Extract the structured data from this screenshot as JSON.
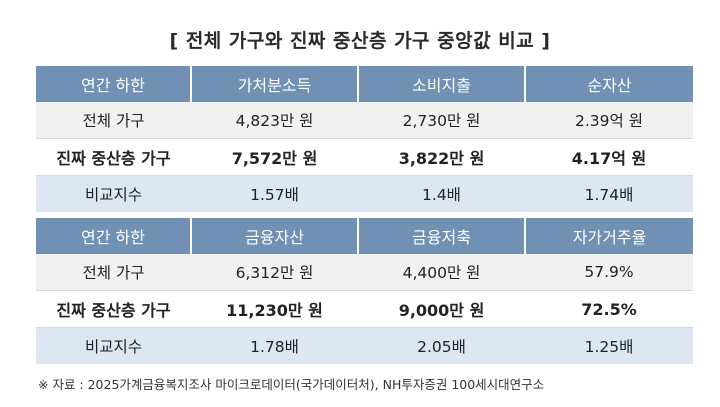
{
  "title": "[ 전체 가구와 진짜 중산층 가구 중앙값 비교 ]",
  "table1": {
    "headers": [
      "연간 하한",
      "가처분소득",
      "소비지출",
      "순자산"
    ],
    "rows": [
      [
        "전체 가구",
        "4,823만 원",
        "2,730만 원",
        "2.39억 원"
      ],
      [
        "진짜 중산층 가구",
        "7,572만 원",
        "3,822만 원",
        "4.17억 원"
      ],
      [
        "비교지수",
        "1.57배",
        "1.4배",
        "1.74배"
      ]
    ]
  },
  "table2": {
    "headers": [
      "연간 하한",
      "금융자산",
      "금융저축",
      "자가거주율"
    ],
    "rows": [
      [
        "전체 가구",
        "6,312만 원",
        "4,400만 원",
        "57.9%"
      ],
      [
        "진짜 중산층 가구",
        "11,230만 원",
        "9,000만 원",
        "72.5%"
      ],
      [
        "비교지수",
        "1.78배",
        "2.05배",
        "1.25배"
      ]
    ]
  },
  "source": "※ 자료 : 2025가계금융복지조사 마이크로데이터(국가데이터처), NH투자증권 100세시대연구소"
}
